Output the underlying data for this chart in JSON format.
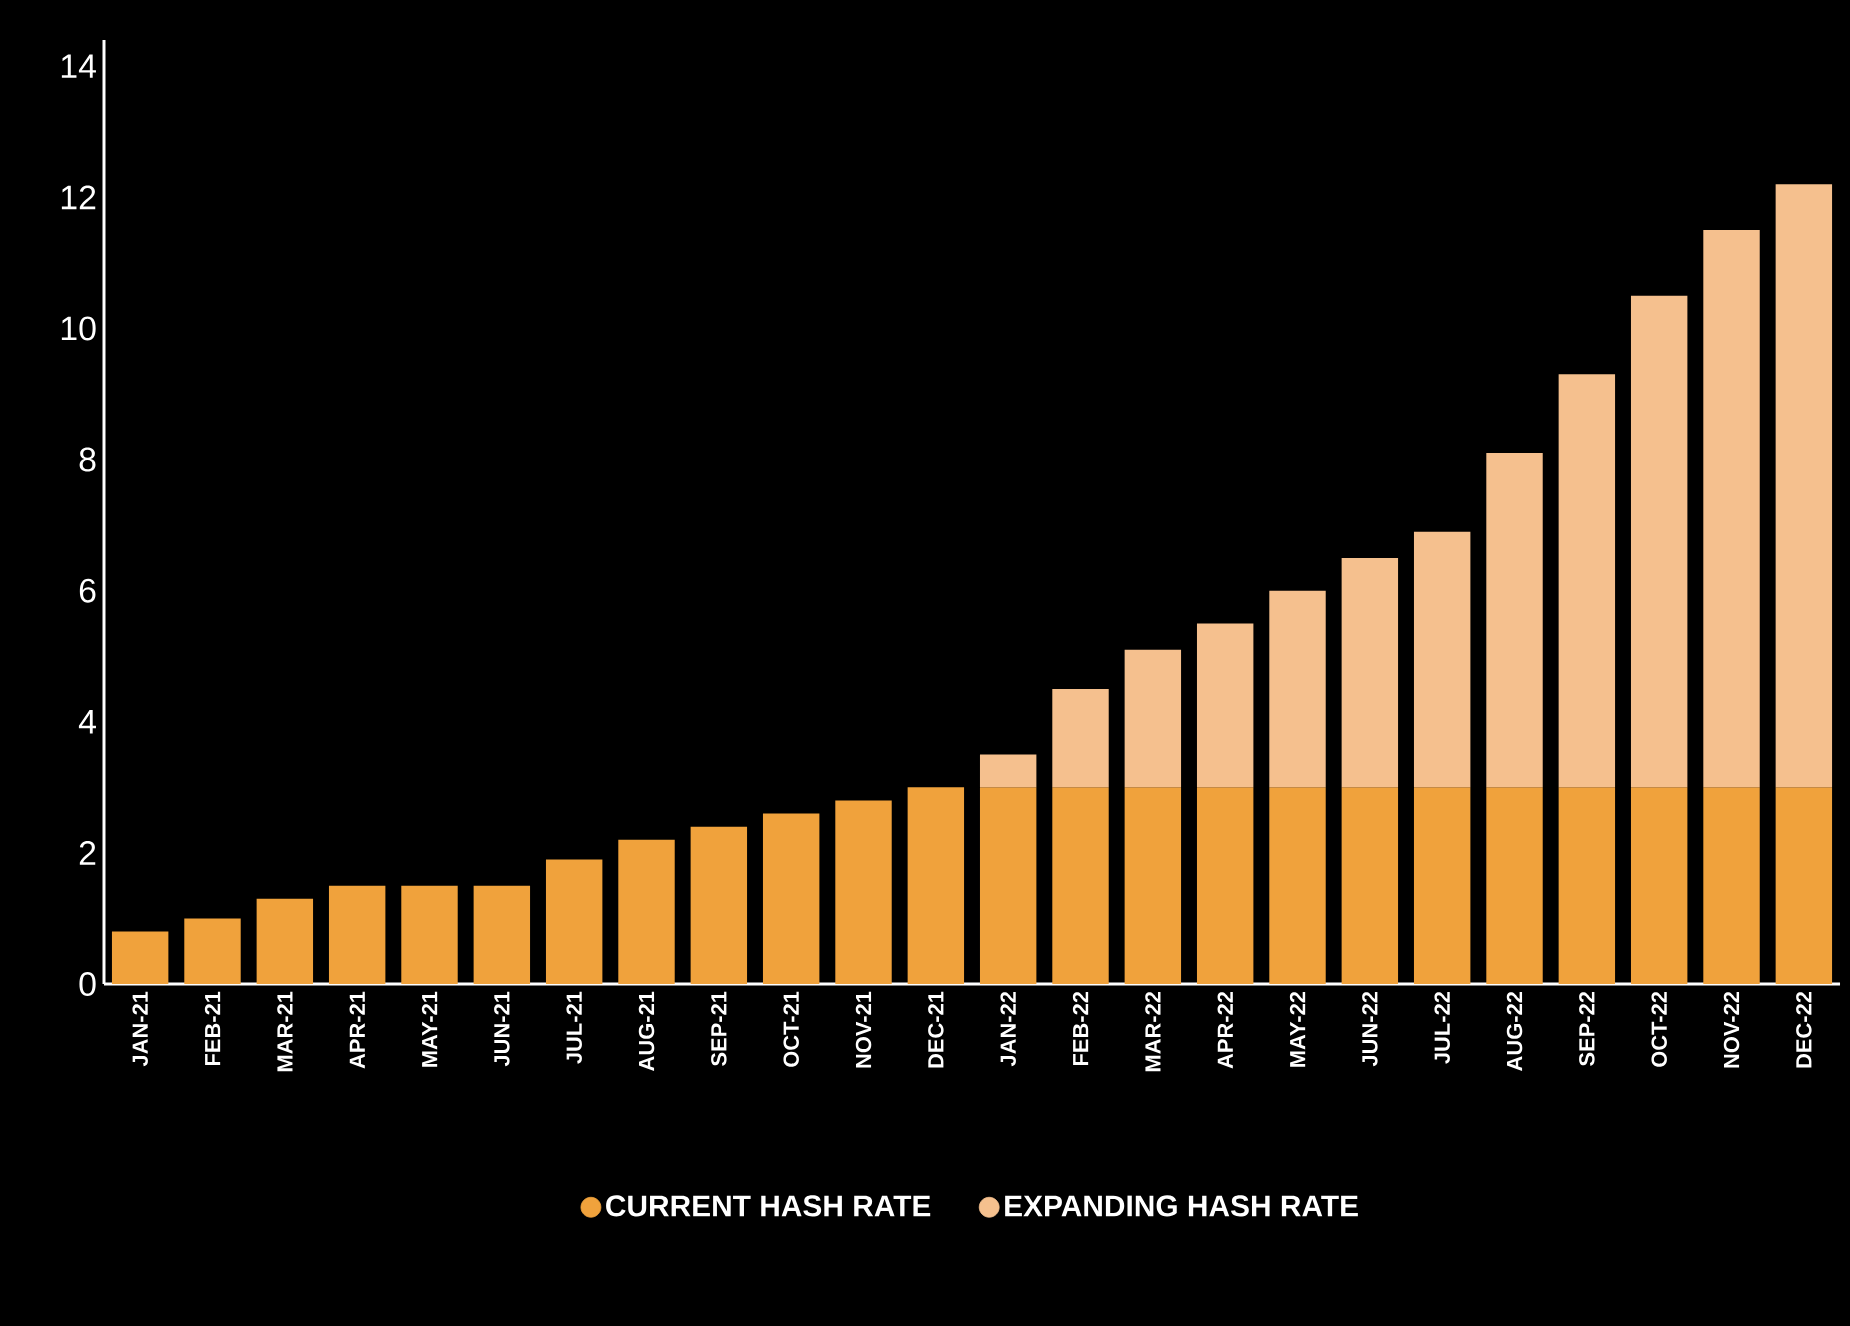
{
  "chart_data": {
    "type": "bar",
    "stacked": true,
    "categories": [
      "JAN-21",
      "FEB-21",
      "MAR-21",
      "APR-21",
      "MAY-21",
      "JUN-21",
      "JUL-21",
      "AUG-21",
      "SEP-21",
      "OCT-21",
      "NOV-21",
      "DEC-21",
      "JAN-22",
      "FEB-22",
      "MAR-22",
      "APR-22",
      "MAY-22",
      "JUN-22",
      "JUL-22",
      "AUG-22",
      "SEP-22",
      "OCT-22",
      "NOV-22",
      "DEC-22"
    ],
    "series": [
      {
        "name": "CURRENT HASH RATE",
        "color": "#f0a23c",
        "values": [
          0.8,
          1.0,
          1.3,
          1.5,
          1.5,
          1.5,
          1.9,
          2.2,
          2.4,
          2.6,
          2.8,
          3.0,
          3.0,
          3.0,
          3.0,
          3.0,
          3.0,
          3.0,
          3.0,
          3.0,
          3.0,
          3.0,
          3.0,
          3.0
        ]
      },
      {
        "name": "EXPANDING HASH RATE",
        "color": "#f5c08e",
        "values": [
          null,
          null,
          null,
          null,
          null,
          null,
          null,
          null,
          null,
          null,
          null,
          null,
          0.5,
          1.5,
          2.1,
          2.5,
          3.0,
          3.5,
          3.9,
          5.1,
          6.3,
          7.5,
          8.5,
          9.2
        ]
      }
    ],
    "ylim": [
      0,
      14.4
    ],
    "yticks": [
      0,
      2,
      4,
      6,
      8,
      10,
      12,
      14
    ],
    "grid": false,
    "legend": "bottom"
  }
}
